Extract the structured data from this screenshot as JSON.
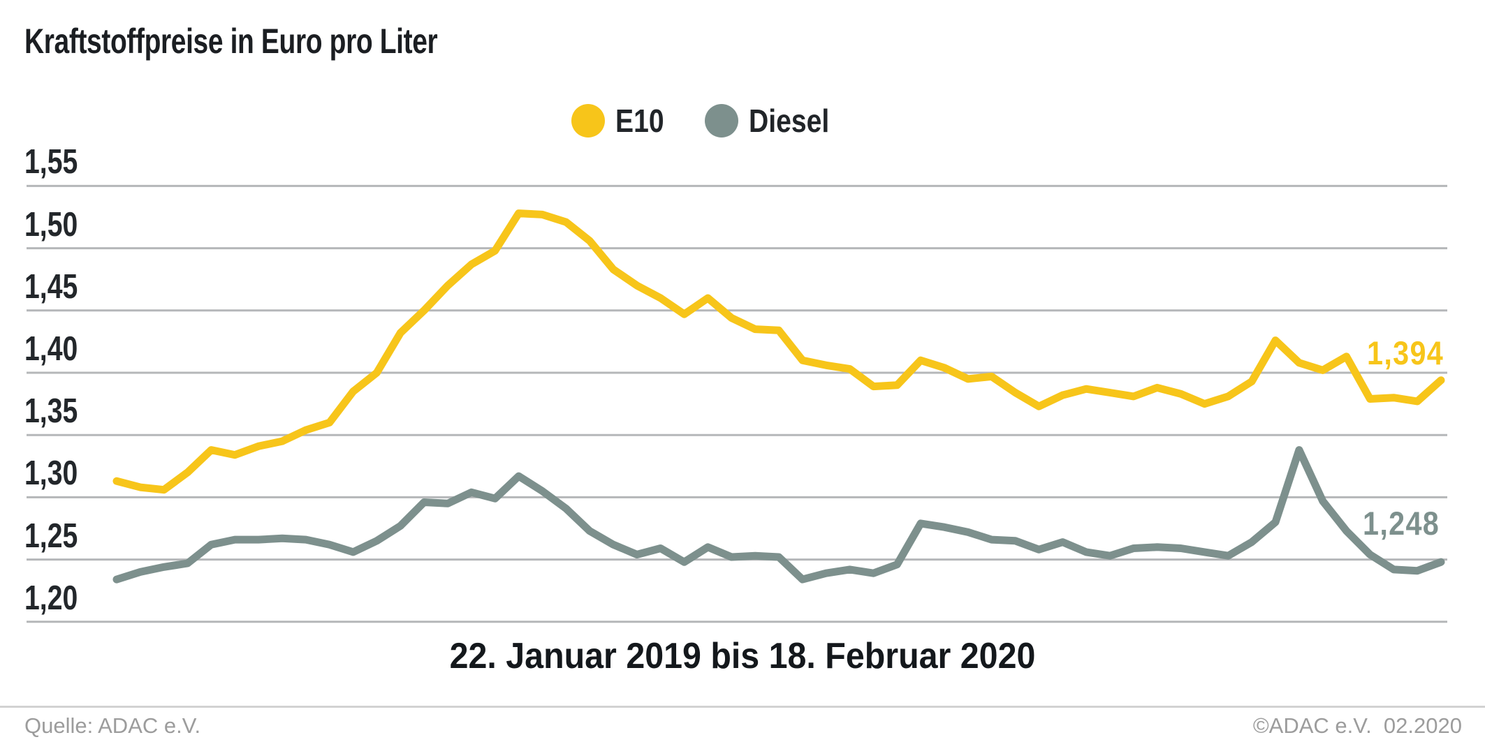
{
  "footer": {
    "source": "Quelle: ADAC e.V.",
    "copyright": "©ADAC e.V.  02.2020"
  },
  "chart_data": {
    "type": "line",
    "title": "Kraftstoffpreise in Euro pro Liter",
    "x_axis_caption": "22. Januar 2019 bis 18. Februar 2020",
    "unit": "Euro pro Liter",
    "x_description": "57 wöchentliche Werte von 22.01.2019 bis 18.02.2020",
    "ylim": [
      1.2,
      1.55
    ],
    "grid": "horizontal",
    "grid_color": "#b5b7b9",
    "legend_position": "top-center",
    "ytick_labels": [
      "1,55",
      "1,50",
      "1,45",
      "1,40",
      "1,35",
      "1,30",
      "1,25",
      "1,20"
    ],
    "ytick_values": [
      1.55,
      1.5,
      1.45,
      1.4,
      1.35,
      1.3,
      1.25,
      1.2
    ],
    "series": [
      {
        "name": "E10",
        "color": "#F7C51A",
        "end_label": "1,394",
        "end_value": 1.394,
        "values": [
          1.313,
          1.308,
          1.306,
          1.32,
          1.338,
          1.334,
          1.341,
          1.345,
          1.354,
          1.36,
          1.385,
          1.4,
          1.432,
          1.45,
          1.47,
          1.487,
          1.498,
          1.528,
          1.527,
          1.521,
          1.506,
          1.483,
          1.47,
          1.46,
          1.447,
          1.46,
          1.444,
          1.435,
          1.434,
          1.41,
          1.406,
          1.403,
          1.389,
          1.39,
          1.41,
          1.404,
          1.395,
          1.397,
          1.384,
          1.373,
          1.382,
          1.387,
          1.384,
          1.381,
          1.388,
          1.383,
          1.375,
          1.381,
          1.393,
          1.426,
          1.408,
          1.402,
          1.413,
          1.379,
          1.38,
          1.377,
          1.394
        ]
      },
      {
        "name": "Diesel",
        "color": "#7D908D",
        "end_label": "1,248",
        "end_value": 1.248,
        "values": [
          1.234,
          1.24,
          1.244,
          1.247,
          1.262,
          1.266,
          1.266,
          1.267,
          1.266,
          1.262,
          1.256,
          1.265,
          1.277,
          1.296,
          1.295,
          1.304,
          1.299,
          1.317,
          1.305,
          1.291,
          1.273,
          1.262,
          1.254,
          1.259,
          1.248,
          1.26,
          1.252,
          1.253,
          1.252,
          1.234,
          1.239,
          1.242,
          1.239,
          1.246,
          1.279,
          1.276,
          1.272,
          1.266,
          1.265,
          1.258,
          1.264,
          1.256,
          1.253,
          1.259,
          1.26,
          1.259,
          1.256,
          1.253,
          1.264,
          1.28,
          1.338,
          1.297,
          1.273,
          1.254,
          1.242,
          1.241,
          1.248
        ]
      }
    ]
  }
}
